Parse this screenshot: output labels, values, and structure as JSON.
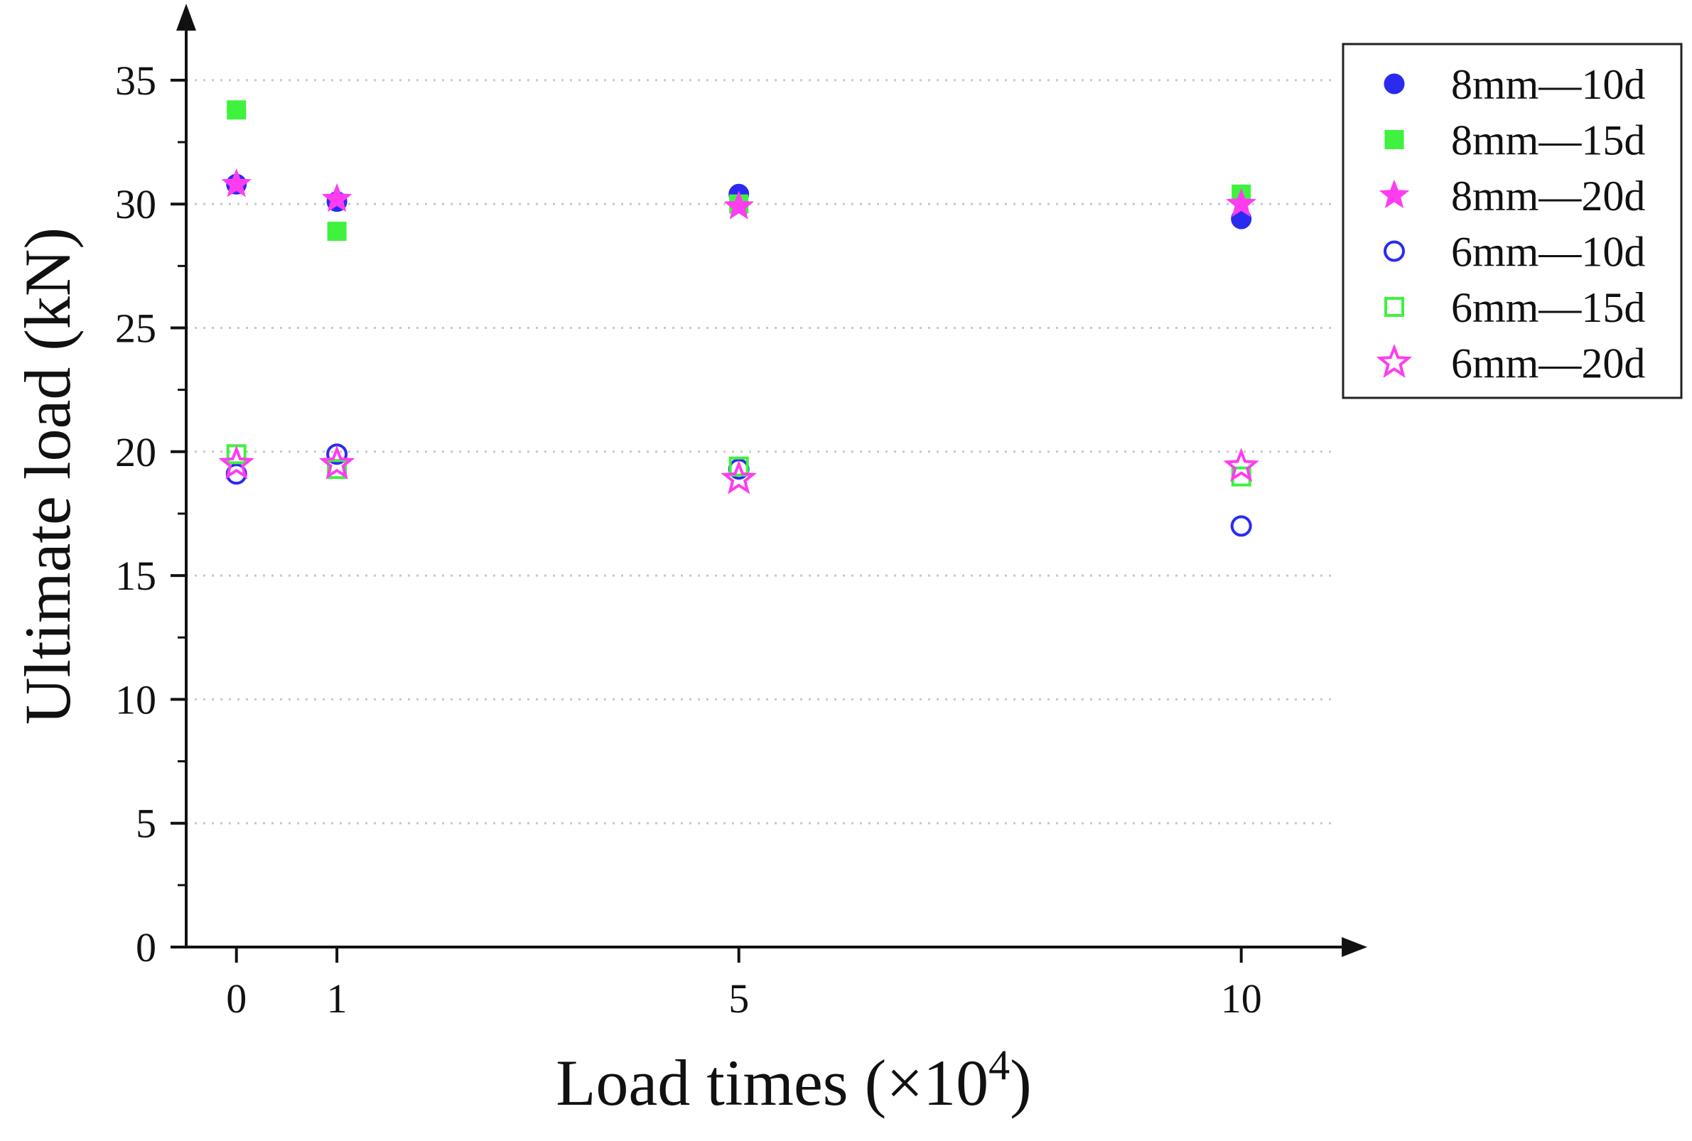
{
  "chart_data": {
    "type": "scatter",
    "xlabel": "Load times (×10",
    "xlabel_exponent": "4",
    "xlabel_close": ")",
    "ylabel": "Ultimate load (kN)",
    "xlim": [
      -0.5,
      11
    ],
    "ylim": [
      0,
      37
    ],
    "x_ticks": [
      0,
      1,
      5,
      10
    ],
    "x_tick_labels": [
      "0",
      "1",
      "5",
      "10"
    ],
    "y_ticks": [
      0,
      5,
      10,
      15,
      20,
      25,
      30,
      35
    ],
    "y_tick_labels": [
      "0",
      "5",
      "10",
      "15",
      "20",
      "25",
      "30",
      "35"
    ],
    "grid": "horizontal-dotted",
    "legend_position": "top-right-outside",
    "series": [
      {
        "name": "8mm—10d",
        "marker": "circle",
        "filled": true,
        "color": "#2b2bf0",
        "x": [
          0,
          1,
          5,
          10
        ],
        "y": [
          30.8,
          30.1,
          30.4,
          29.4
        ]
      },
      {
        "name": "8mm—15d",
        "marker": "square",
        "filled": true,
        "color": "#3ef23e",
        "x": [
          0,
          1,
          5,
          10
        ],
        "y": [
          33.8,
          28.9,
          30.0,
          30.4
        ]
      },
      {
        "name": "8mm—20d",
        "marker": "star",
        "filled": true,
        "color": "#ff3cf0",
        "x": [
          0,
          1,
          5,
          10
        ],
        "y": [
          30.8,
          30.2,
          29.9,
          30.0
        ]
      },
      {
        "name": "6mm—10d",
        "marker": "circle",
        "filled": false,
        "color": "#2b2bf0",
        "x": [
          0,
          1,
          5,
          10
        ],
        "y": [
          19.1,
          19.9,
          19.3,
          17.0
        ]
      },
      {
        "name": "6mm—15d",
        "marker": "square",
        "filled": false,
        "color": "#3ef23e",
        "x": [
          0,
          1,
          5,
          10
        ],
        "y": [
          19.9,
          19.3,
          19.4,
          19.0
        ]
      },
      {
        "name": "6mm—20d",
        "marker": "star",
        "filled": false,
        "color": "#ff3cf0",
        "x": [
          0,
          1,
          5,
          10
        ],
        "y": [
          19.5,
          19.5,
          18.9,
          19.4
        ]
      }
    ]
  }
}
